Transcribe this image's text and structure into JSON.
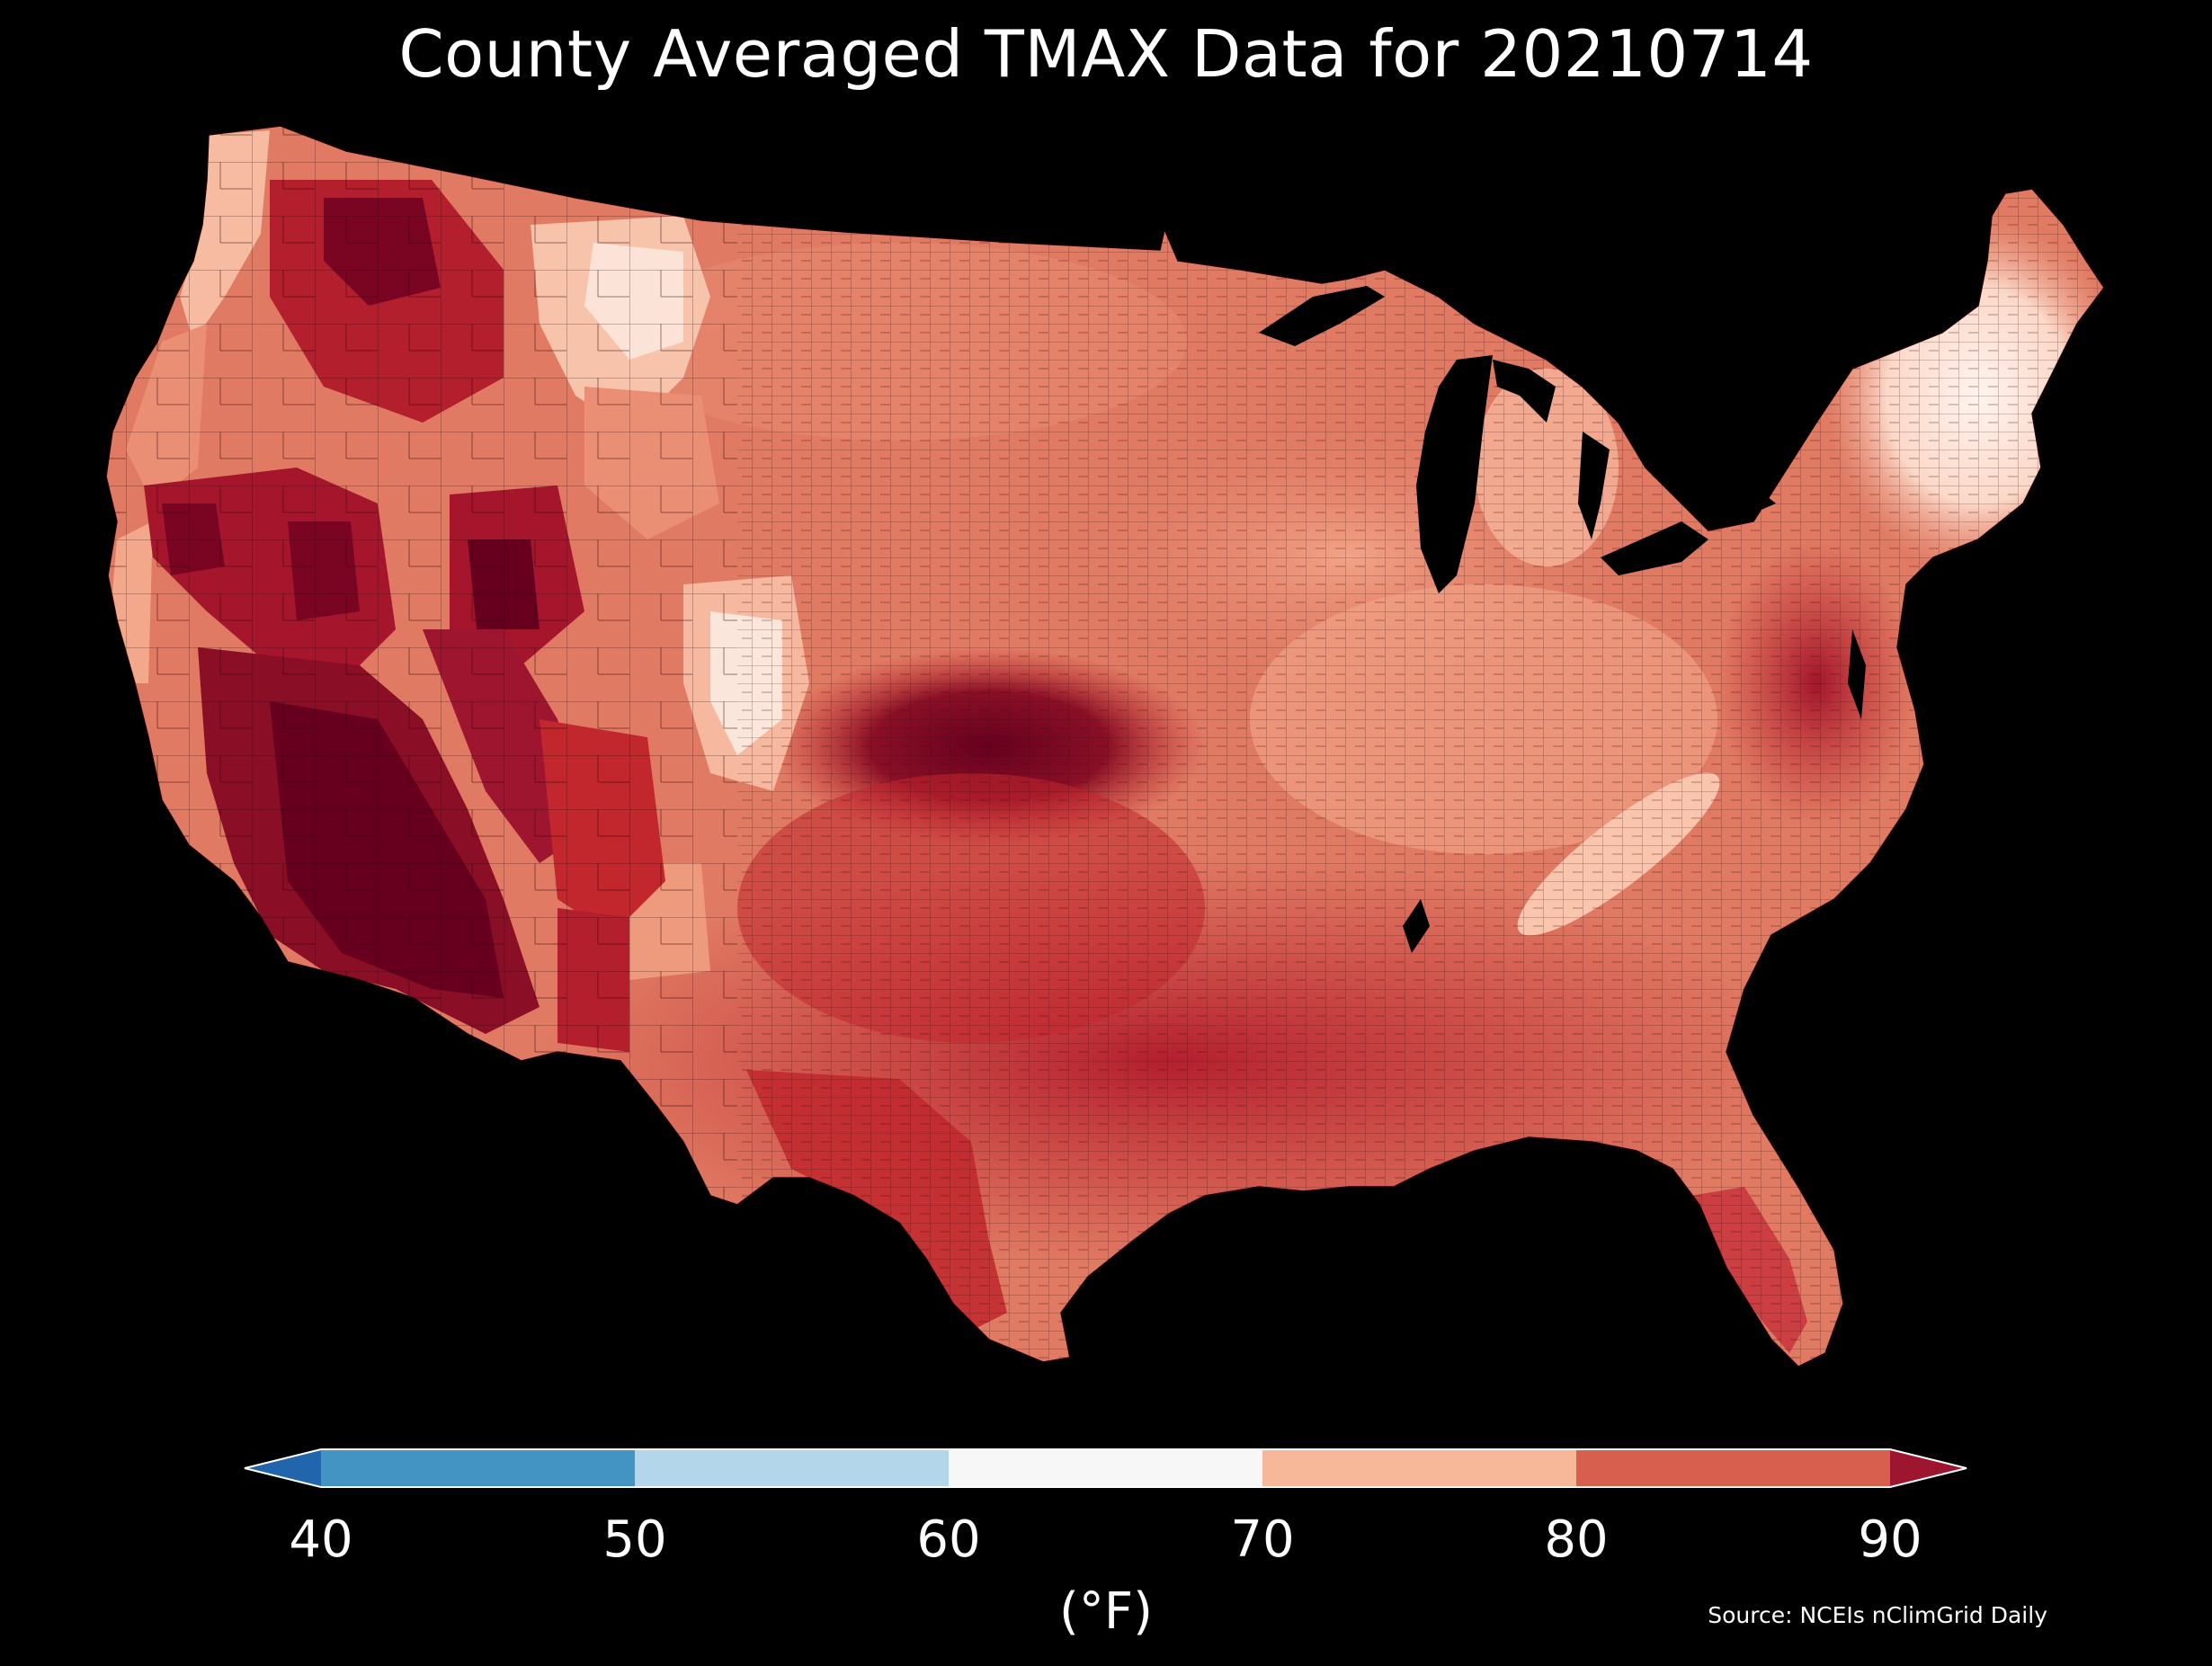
{
  "title": "County Averaged TMAX Data for 20210714",
  "colorbar": {
    "unit_label": "(°F)",
    "ticks": [
      "40",
      "50",
      "60",
      "70",
      "80",
      "90"
    ],
    "bins": [
      {
        "from": null,
        "to": 40,
        "color": "#2166ac"
      },
      {
        "from": 40,
        "to": 50,
        "color": "#4393c3"
      },
      {
        "from": 50,
        "to": 60,
        "color": "#b4d6ea"
      },
      {
        "from": 60,
        "to": 70,
        "color": "#f7f7f7"
      },
      {
        "from": 70,
        "to": 80,
        "color": "#f7b799"
      },
      {
        "from": 80,
        "to": 90,
        "color": "#d6604d"
      },
      {
        "from": 90,
        "to": null,
        "color": "#9e1530"
      }
    ],
    "extend": "both"
  },
  "source": "Source: NCEIs nClimGrid Daily",
  "map": {
    "region": "Contiguous United States",
    "variable": "TMAX",
    "units": "°F",
    "colors": {
      "background": "#000000",
      "cool_70s": "#f9c5ad",
      "warm_80s": "#e07a63",
      "hot_low90s": "#c1272d",
      "hottest": "#67001f",
      "near_60s": "#fbe6dc",
      "county_line": "#3a0a0a",
      "water": "#000000"
    }
  }
}
